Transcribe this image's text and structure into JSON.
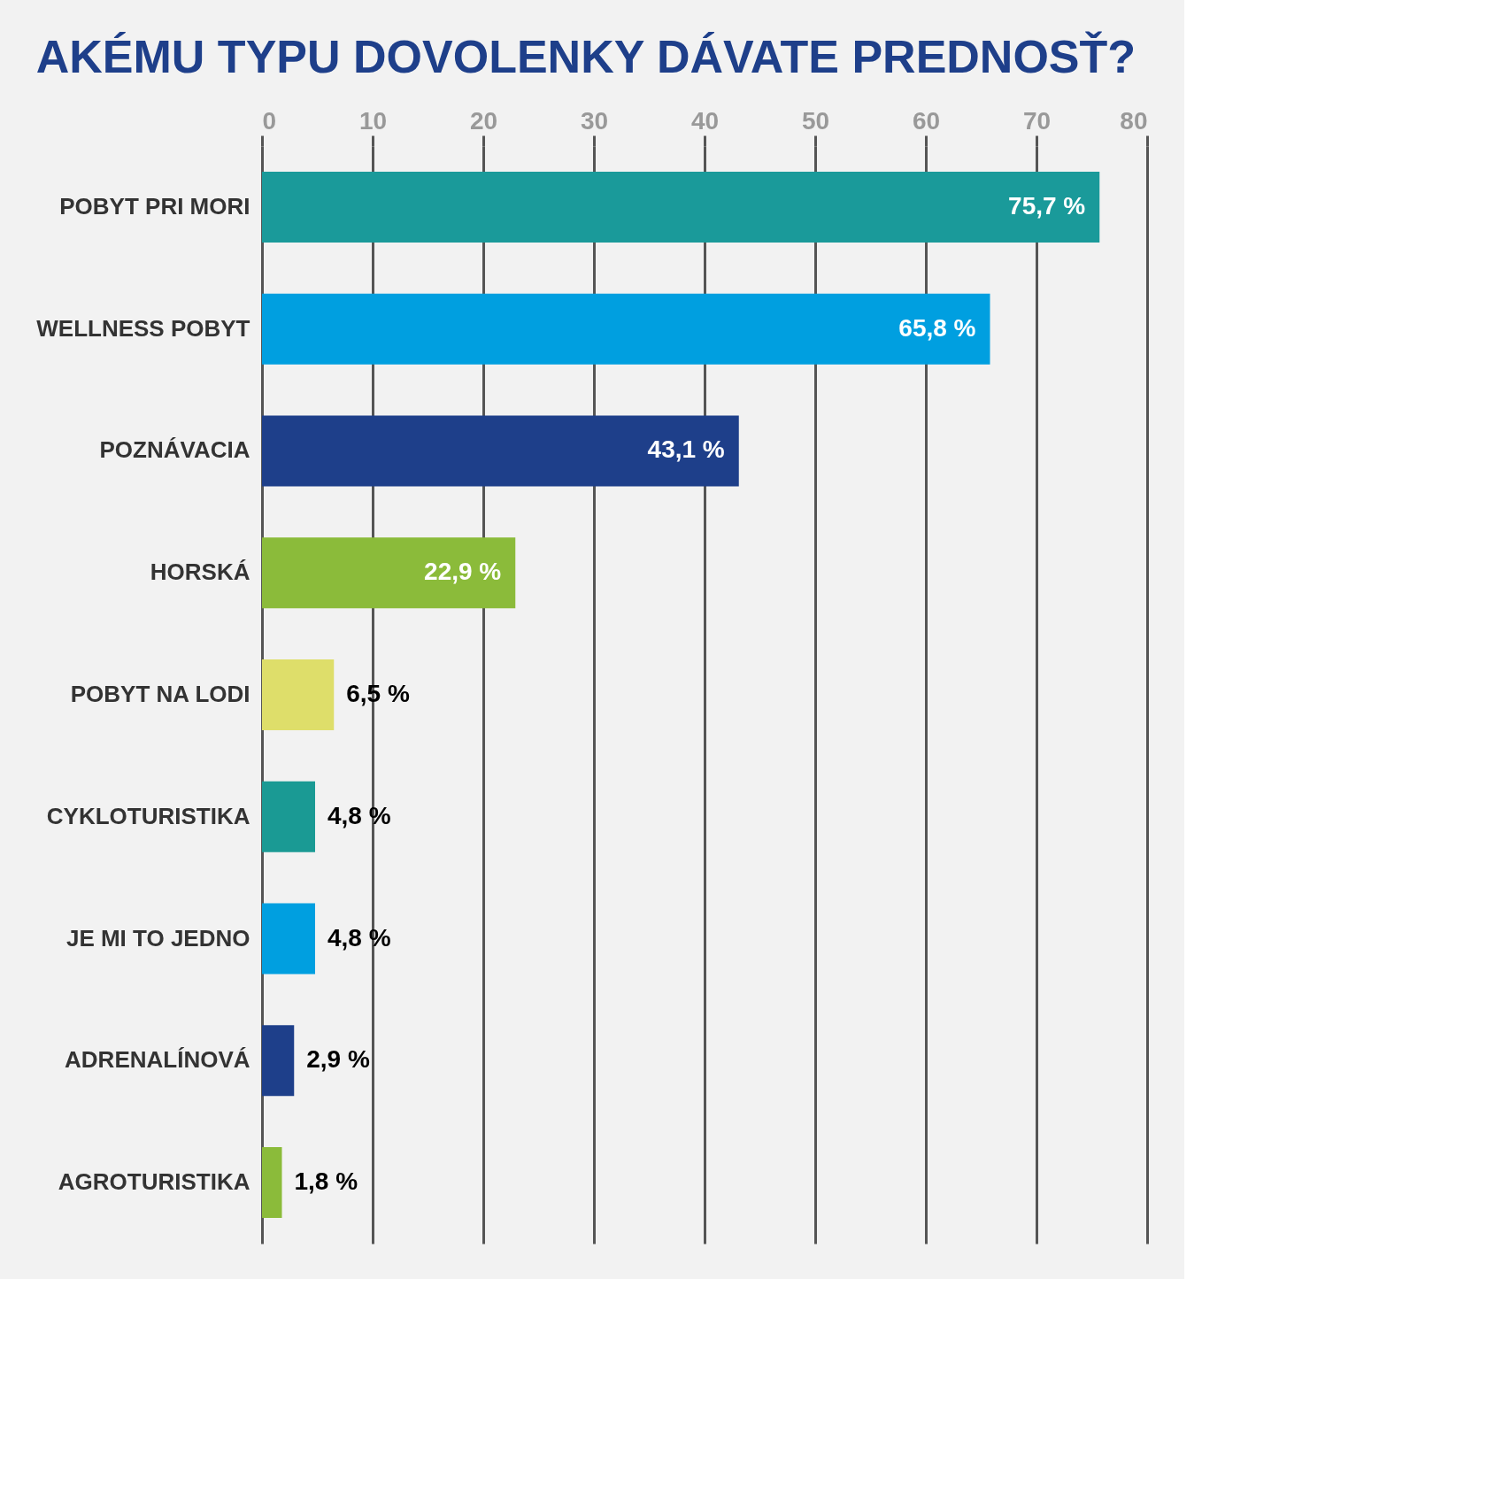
{
  "chart_data": {
    "type": "bar",
    "orientation": "horizontal",
    "title": "AKÉMU TYPU DOVOLENKY DÁVATE PREDNOSŤ?",
    "categories": [
      "POBYT PRI MORI",
      "WELLNESS POBYT",
      "POZNÁVACIA",
      "HORSKÁ",
      "POBYT NA LODI",
      "CYKLOTURISTIKA",
      "JE MI TO JEDNO",
      "ADRENALÍNOVÁ",
      "AGROTURISTIKA"
    ],
    "values": [
      75.7,
      65.8,
      43.1,
      22.9,
      6.5,
      4.8,
      4.8,
      2.9,
      1.8
    ],
    "value_labels": [
      "75,7 %",
      "65,8 %",
      "43,1 %",
      "22,9 %",
      "6,5 %",
      "4,8 %",
      "4,8 %",
      "2,9 %",
      "1,8 %"
    ],
    "colors": [
      "#1a9a9a",
      "#009fe0",
      "#1e3f8a",
      "#8bbb3a",
      "#dede6a",
      "#1a9a94",
      "#009fe0",
      "#1e3f8a",
      "#8bbb3a"
    ],
    "xlim": [
      0,
      80
    ],
    "xticks": [
      0,
      10,
      20,
      30,
      40,
      50,
      60,
      70,
      80
    ],
    "grid": "x"
  }
}
